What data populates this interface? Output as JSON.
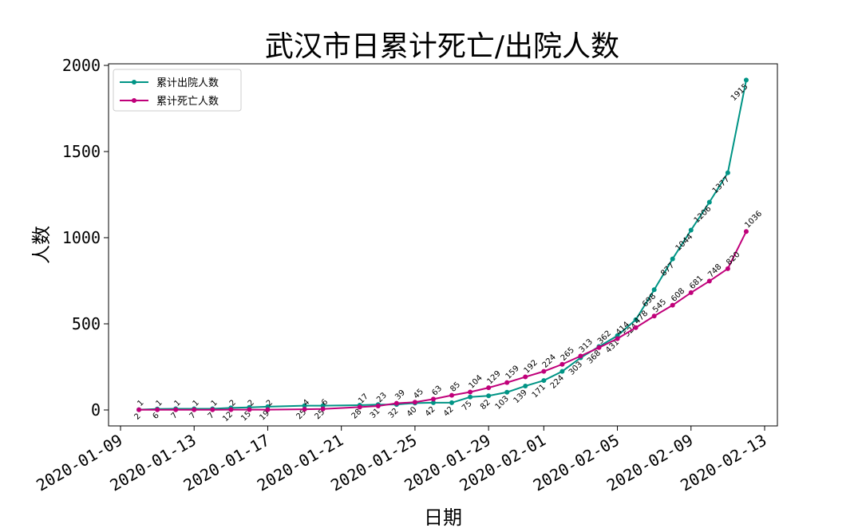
{
  "chart_data": {
    "type": "line",
    "title": "武汉市日累计死亡/出院人数",
    "xlabel": "日期",
    "ylabel": "人数",
    "ylim": [
      -100,
      2050
    ],
    "xlim": [
      "2020-01-09",
      "2020-02-13"
    ],
    "x_ticks": [
      "2020-01-09",
      "2020-01-13",
      "2020-01-17",
      "2020-01-21",
      "2020-01-25",
      "2020-01-29",
      "2020-02-01",
      "2020-02-05",
      "2020-02-09",
      "2020-02-13"
    ],
    "y_ticks": [
      0,
      500,
      1000,
      1500,
      2000
    ],
    "legend_position": "upper-left",
    "grid": false,
    "series": [
      {
        "name": "累计出院人数",
        "color": "#009485",
        "points": [
          [
            "2020-01-10",
            2
          ],
          [
            "2020-01-11",
            6
          ],
          [
            "2020-01-12",
            7
          ],
          [
            "2020-01-13",
            7
          ],
          [
            "2020-01-14",
            7
          ],
          [
            "2020-01-15",
            12
          ],
          [
            "2020-01-16",
            15
          ],
          [
            "2020-01-17",
            19
          ],
          [
            "2020-01-19",
            25
          ],
          [
            "2020-01-20",
            25
          ],
          [
            "2020-01-22",
            28
          ],
          [
            "2020-01-23",
            31
          ],
          [
            "2020-01-24",
            32
          ],
          [
            "2020-01-25",
            40
          ],
          [
            "2020-01-26",
            42
          ],
          [
            "2020-01-27",
            42
          ],
          [
            "2020-01-28",
            75
          ],
          [
            "2020-01-29",
            82
          ],
          [
            "2020-01-30",
            103
          ],
          [
            "2020-01-31",
            139
          ],
          [
            "2020-02-01",
            171
          ],
          [
            "2020-02-02",
            224
          ],
          [
            "2020-02-03",
            303
          ],
          [
            "2020-02-04",
            368
          ],
          [
            "2020-02-05",
            431
          ],
          [
            "2020-02-06",
            524
          ],
          [
            "2020-02-07",
            698
          ],
          [
            "2020-02-08",
            877
          ],
          [
            "2020-02-09",
            1044
          ],
          [
            "2020-02-10",
            1206
          ],
          [
            "2020-02-11",
            1377
          ],
          [
            "2020-02-12",
            1915
          ]
        ]
      },
      {
        "name": "累计死亡人数",
        "color": "#c0007a",
        "points": [
          [
            "2020-01-10",
            1
          ],
          [
            "2020-01-11",
            1
          ],
          [
            "2020-01-12",
            1
          ],
          [
            "2020-01-13",
            1
          ],
          [
            "2020-01-14",
            1
          ],
          [
            "2020-01-15",
            2
          ],
          [
            "2020-01-16",
            2
          ],
          [
            "2020-01-17",
            2
          ],
          [
            "2020-01-19",
            4
          ],
          [
            "2020-01-20",
            6
          ],
          [
            "2020-01-22",
            17
          ],
          [
            "2020-01-23",
            23
          ],
          [
            "2020-01-24",
            39
          ],
          [
            "2020-01-25",
            45
          ],
          [
            "2020-01-26",
            63
          ],
          [
            "2020-01-27",
            85
          ],
          [
            "2020-01-28",
            104
          ],
          [
            "2020-01-29",
            129
          ],
          [
            "2020-01-30",
            159
          ],
          [
            "2020-01-31",
            192
          ],
          [
            "2020-02-01",
            224
          ],
          [
            "2020-02-02",
            265
          ],
          [
            "2020-02-03",
            313
          ],
          [
            "2020-02-04",
            362
          ],
          [
            "2020-02-05",
            414
          ],
          [
            "2020-02-06",
            478
          ],
          [
            "2020-02-07",
            545
          ],
          [
            "2020-02-08",
            608
          ],
          [
            "2020-02-09",
            681
          ],
          [
            "2020-02-10",
            748
          ],
          [
            "2020-02-11",
            820
          ],
          [
            "2020-02-12",
            1036
          ]
        ]
      }
    ]
  }
}
